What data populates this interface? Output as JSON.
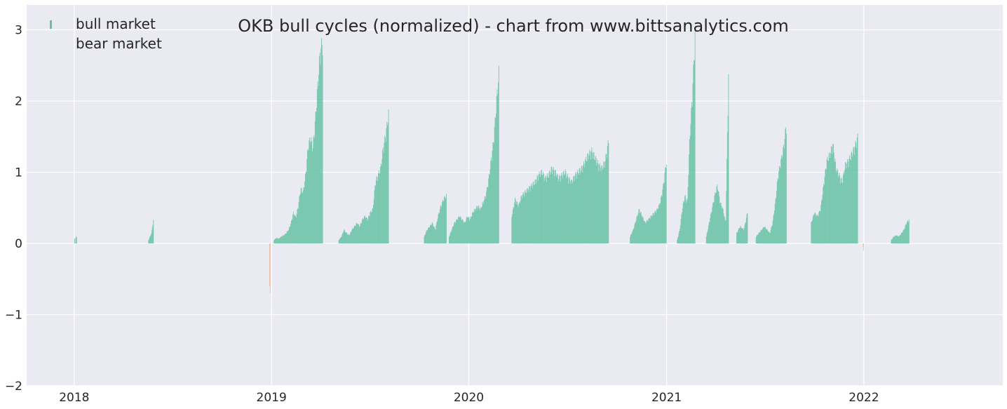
{
  "chart_data": {
    "type": "bar",
    "title": "OKB bull cycles (normalized)  - chart from www.bittsanalytics.com",
    "xlabel": "",
    "ylabel": "",
    "x_range": [
      "2017-10-05",
      "2022-09-15"
    ],
    "ylim": [
      -2,
      3.35
    ],
    "grid": true,
    "legend_position": "top-left",
    "x_ticks": [
      "2018",
      "2019",
      "2020",
      "2021",
      "2022"
    ],
    "y_ticks": [
      "−2",
      "−1",
      "0",
      "1",
      "2",
      "3"
    ],
    "colors": {
      "bull": "#66c2a5",
      "bear": "#fc8d62",
      "background": "#eaeaf2",
      "grid": "#ffffff"
    },
    "series": [
      {
        "name": "bull market",
        "segments": [
          {
            "start": "2018-01-01",
            "end": "2018-01-02",
            "values": [
              0.06,
              0.08
            ]
          },
          {
            "start": "2018-01-04",
            "end": "2018-01-05",
            "values": [
              0.1,
              0.09
            ]
          },
          {
            "start": "2018-05-18",
            "end": "2018-05-27",
            "values": [
              0.05,
              0.08,
              0.1,
              0.12,
              0.15,
              0.2,
              0.27,
              0.35
            ]
          },
          {
            "start": "2019-01-05",
            "end": "2019-04-05",
            "values": [
              0.05,
              0.08,
              0.07,
              0.1,
              0.12,
              0.15,
              0.2,
              0.3,
              0.45,
              0.38,
              0.55,
              0.8,
              0.75,
              1.0,
              1.4,
              1.55,
              1.4,
              1.8,
              2.3,
              2.8,
              2.95
            ]
          },
          {
            "start": "2019-05-05",
            "end": "2019-08-05",
            "values": [
              0.05,
              0.1,
              0.2,
              0.15,
              0.12,
              0.2,
              0.25,
              0.3,
              0.25,
              0.35,
              0.4,
              0.35,
              0.45,
              0.5,
              0.9,
              1.0,
              1.1,
              1.4,
              1.6,
              1.9
            ]
          },
          {
            "start": "2019-10-10",
            "end": "2019-11-20",
            "values": [
              0.1,
              0.2,
              0.25,
              0.3,
              0.2,
              0.4,
              0.55,
              0.65,
              0.7
            ]
          },
          {
            "start": "2019-11-25",
            "end": "2020-02-25",
            "values": [
              0.1,
              0.2,
              0.3,
              0.35,
              0.4,
              0.35,
              0.3,
              0.4,
              0.35,
              0.45,
              0.5,
              0.55,
              0.5,
              0.6,
              0.7,
              0.9,
              1.2,
              1.5,
              2.0,
              2.5
            ]
          },
          {
            "start": "2020-03-20",
            "end": "2020-09-15",
            "values": [
              0.4,
              0.65,
              0.55,
              0.7,
              0.75,
              0.8,
              0.85,
              0.9,
              1.0,
              1.05,
              0.95,
              1.0,
              1.1,
              1.05,
              0.95,
              1.0,
              1.05,
              0.95,
              0.9,
              1.0,
              1.05,
              1.1,
              1.2,
              1.3,
              1.35,
              1.25,
              1.15,
              1.1,
              1.2,
              1.5
            ]
          },
          {
            "start": "2020-10-25",
            "end": "2020-12-31",
            "values": [
              0.1,
              0.2,
              0.35,
              0.5,
              0.4,
              0.3,
              0.35,
              0.4,
              0.45,
              0.5,
              0.6,
              0.85,
              1.2
            ]
          },
          {
            "start": "2021-01-20",
            "end": "2021-02-22",
            "values": [
              0.05,
              0.2,
              0.5,
              0.7,
              0.6,
              1.6,
              2.2,
              3.05
            ]
          },
          {
            "start": "2021-03-15",
            "end": "2021-04-25",
            "values": [
              0.1,
              0.3,
              0.5,
              0.7,
              0.85,
              0.6,
              0.5,
              0.3,
              2.45
            ]
          },
          {
            "start": "2021-05-10",
            "end": "2021-05-30",
            "values": [
              0.15,
              0.25,
              0.2,
              0.45
            ]
          },
          {
            "start": "2021-06-15",
            "end": "2021-08-10",
            "values": [
              0.1,
              0.15,
              0.2,
              0.25,
              0.2,
              0.15,
              0.3,
              0.6,
              1.0,
              1.2,
              1.4,
              1.75
            ]
          },
          {
            "start": "2021-09-25",
            "end": "2021-12-20",
            "values": [
              0.3,
              0.45,
              0.4,
              0.5,
              0.85,
              1.2,
              1.3,
              1.45,
              1.1,
              1.0,
              0.9,
              1.15,
              1.2,
              1.3,
              1.4,
              1.55
            ]
          },
          {
            "start": "2022-02-20",
            "end": "2022-03-25",
            "values": [
              0.05,
              0.1,
              0.12,
              0.1,
              0.15,
              0.2,
              0.3,
              0.35
            ]
          }
        ]
      },
      {
        "name": "bear market",
        "segments": [
          {
            "start": "2018-12-28",
            "end": "2018-12-29",
            "values": [
              -0.6,
              -0.7
            ]
          },
          {
            "start": "2021-12-30",
            "end": "2021-12-31",
            "values": [
              -0.05,
              -0.1
            ]
          }
        ]
      }
    ]
  }
}
